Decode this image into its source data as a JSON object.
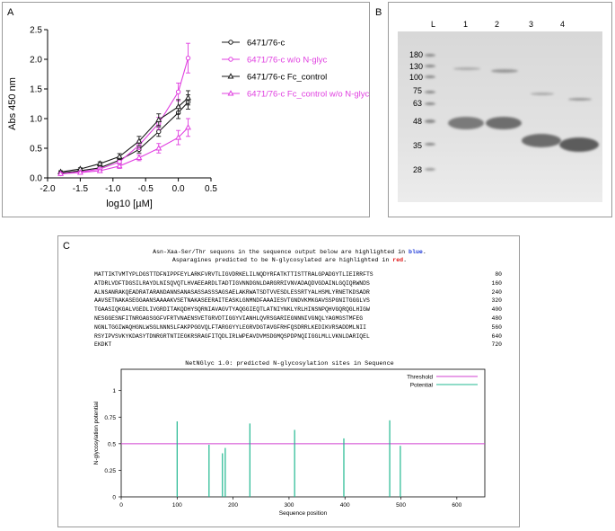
{
  "panel_labels": {
    "a": "A",
    "b": "B",
    "c": "C"
  },
  "gel": {
    "lane_labels": [
      "L",
      "1",
      "2",
      "3",
      "4"
    ],
    "ladder_kda": [
      "180",
      "130",
      "100",
      "75",
      "63",
      "48",
      "35",
      "28"
    ]
  },
  "sequence": {
    "header_line1_pre": "Asn-Xaa-Ser/Thr sequons in the sequence output below are highlighted in ",
    "header_line1_hl": "blue",
    "header_line2_pre": "Asparagines predicted to be N-glycosylated are highlighted in ",
    "header_line2_hl": "red",
    "lines": [
      "MATTIKTVMTYPLDGSTTDFNIPPFEYLARKFVRVTLIGVDRKELILNQDYRFATKTTISTTRALGPADGYTLIEIRRFTS",
      "ATDRLVDFTDGSILRAYDLNISQVQTLHVAEEARDLTADTIGVNNDGNLDARGRRIVNVADAQDVGDAINLGQIQRWNDS",
      "ALNSANRAKQEADRATARANDANNSANASASSASSSAGSAELAKRWATSDTVVESDLESSRTYALHSMLYRNETKDSADR",
      "AAVSETNAKASEGGAANSAAAAKVSETNAKASEERAITEASKLGNMNDFAAAIESVTGNDVKMKGAVSSPGNITGGGLVS",
      "TGAASIQKGALVGEDLIVGRDITAKQDHYSQRNIAVAGVTYAQGGIEQTLATNIYNKLYRLHINSNPQHVGQRQGLHIGW",
      "NESGGESNFITNRGAGSGGFVFRTVNAENSVETGRVDTIGGYVIANHLQVRSGARIEGNNNIVGNQLYAGMGSTMFEG",
      "NGNLTGGIWAQHGNLWSGLNNNSLFAKPPGGVQLFTARGGYYLEGRVDGTAVGFRHFQSDRRLKEDIKVRSADDMLNII",
      "RSYIPVSVKYKDASYTDNRGRTNTIEGKRSRAGFITQDLIRLWPEAVDVMSDGMQSPDPNQIIGGLMLLVKNLDARIQEL",
      "EKDKT"
    ],
    "numbers": [
      "80",
      "160",
      "240",
      "320",
      "400",
      "480",
      "560",
      "640",
      "720"
    ],
    "graph_title": "NetNGlyc 1.0: predicted N-glycosylation sites in Sequence"
  },
  "chart_data": [
    {
      "type": "line",
      "title": "",
      "xlabel": "log10 [µM]",
      "ylabel": "Abs 450 nm",
      "xlim": [
        -2.0,
        0.5
      ],
      "ylim": [
        0.0,
        2.5
      ],
      "xticks": [
        "-2.0",
        "-1.5",
        "-1.0",
        "-0.5",
        "0.0",
        "0.5"
      ],
      "yticks": [
        "0.0",
        "0.5",
        "1.0",
        "1.5",
        "2.0",
        "2.5"
      ],
      "x": [
        -1.8,
        -1.5,
        -1.2,
        -0.9,
        -0.6,
        -0.3,
        0.0,
        0.15
      ],
      "series": [
        {
          "name": "6471/76-c",
          "color": "#1a1a1a",
          "marker": "circle",
          "values": [
            0.08,
            0.12,
            0.17,
            0.3,
            0.48,
            0.78,
            1.1,
            1.28
          ],
          "errors": [
            0.02,
            0.02,
            0.03,
            0.05,
            0.06,
            0.08,
            0.1,
            0.12
          ]
        },
        {
          "name": "6471/76-c w/o N-glyc",
          "color": "#e040e0",
          "marker": "circle",
          "values": [
            0.07,
            0.1,
            0.15,
            0.27,
            0.55,
            0.92,
            1.45,
            2.02
          ],
          "errors": [
            0.02,
            0.02,
            0.03,
            0.04,
            0.07,
            0.1,
            0.15,
            0.25
          ]
        },
        {
          "name": "6471/76-c Fc_control",
          "color": "#1a1a1a",
          "marker": "triangle",
          "values": [
            0.1,
            0.15,
            0.24,
            0.36,
            0.62,
            0.98,
            1.2,
            1.35
          ],
          "errors": [
            0.02,
            0.02,
            0.03,
            0.05,
            0.08,
            0.1,
            0.12,
            0.12
          ]
        },
        {
          "name": "6471/76-c Fc_control w/o N-glyc",
          "color": "#e040e0",
          "marker": "triangle",
          "values": [
            0.07,
            0.09,
            0.12,
            0.2,
            0.34,
            0.5,
            0.68,
            0.85
          ],
          "errors": [
            0.02,
            0.02,
            0.02,
            0.04,
            0.05,
            0.08,
            0.12,
            0.15
          ]
        }
      ],
      "legend": "right"
    },
    {
      "type": "bar",
      "title": "",
      "xlabel": "Sequence position",
      "ylabel": "N-glycosylation potential",
      "xlim": [
        0,
        650
      ],
      "ylim": [
        0,
        1.2
      ],
      "xticks": [
        "0",
        "100",
        "200",
        "300",
        "400",
        "500",
        "600"
      ],
      "yticks": [
        "0",
        "0.25",
        "0.5",
        "0.75",
        "1"
      ],
      "threshold": 0.5,
      "x": [
        100,
        157,
        181,
        186,
        230,
        310,
        398,
        480,
        499
      ],
      "values": [
        0.71,
        0.49,
        0.41,
        0.46,
        0.69,
        0.63,
        0.55,
        0.72,
        0.48
      ],
      "series_legend": [
        {
          "name": "Threshold",
          "color": "#d040d0"
        },
        {
          "name": "Potential",
          "color": "#20b890"
        }
      ],
      "legend": "top-right"
    }
  ]
}
